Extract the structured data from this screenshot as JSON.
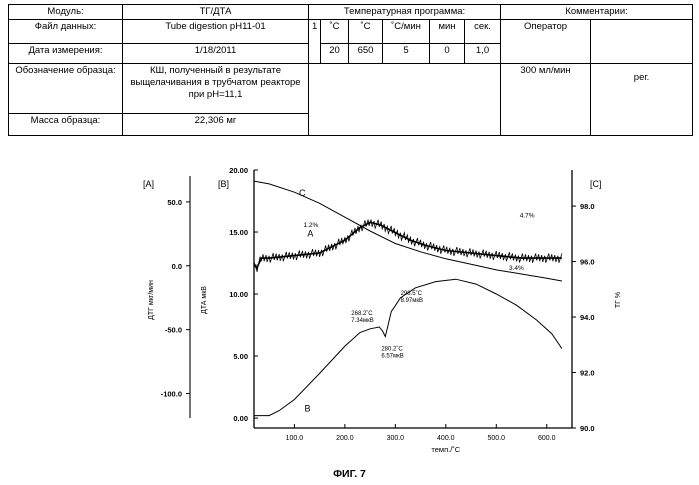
{
  "table": {
    "row1": {
      "module_label": "Модуль:",
      "module_value": "ТГ/ДТА",
      "program_label": "Температурная программа:",
      "comments_label": "Комментарии:"
    },
    "row2": {
      "datafile_label": "Файл данных:",
      "datafile_value": "Tube digestion pH11-01",
      "step_no": "1",
      "h_c1": "˚C",
      "h_c2": "˚C",
      "h_rate": "˚С/мин",
      "h_min": "мин",
      "h_sec": "сек.",
      "operator_label": "Оператор"
    },
    "row3": {
      "date_label": "Дата измерения:",
      "date_value": "1/18/2011",
      "v_start": "20",
      "v_end": "650",
      "v_rate": "5",
      "v_min": "0",
      "v_sec": "1,0"
    },
    "row4": {
      "sample_label": "Обозначение образца:",
      "sample_value": "КШ, полученный в результате выщелачивания в трубчатом реакторе при pH=11,1",
      "flow_value": "300 мл/мин",
      "flow_unit": "рег."
    },
    "row5": {
      "mass_label": "Масса образца:",
      "mass_value": "22,306 мг"
    }
  },
  "figure_caption": "ФИГ. 7",
  "chart_data": {
    "type": "line",
    "xlabel": "темп./˚C",
    "x_ticks": [
      "100.0",
      "200.0",
      "300.0",
      "400.0",
      "500.0",
      "600.0"
    ],
    "xlim": [
      20,
      650
    ],
    "axes": {
      "A": {
        "tag": "[A]",
        "label": "ДТГ мкг/мин",
        "ticks": [
          "50.0",
          "0.0",
          "-50.0",
          "-100.0"
        ],
        "ylim": [
          -127,
          75
        ]
      },
      "B": {
        "tag": "[B]",
        "label": "ДТА мкВ",
        "ticks": [
          "20.00",
          "15.00",
          "10.00",
          "5.00",
          "0.00"
        ],
        "ylim": [
          -0.8,
          20
        ]
      },
      "C": {
        "tag": "[C]",
        "label": "ТГ %",
        "ticks": [
          "98.0",
          "96.0",
          "94.0",
          "92.0",
          "90.0"
        ],
        "ylim": [
          90,
          99.3
        ]
      }
    },
    "series": [
      {
        "name": "A",
        "axis": "A",
        "x": [
          20,
          25,
          35,
          50,
          100,
          150,
          200,
          230,
          250,
          270,
          300,
          330,
          360,
          400,
          450,
          500,
          550,
          600,
          630
        ],
        "y": [
          2,
          -2,
          6,
          6,
          8,
          10,
          20,
          30,
          34,
          32,
          26,
          20,
          16,
          12,
          10,
          8,
          6,
          6,
          6
        ]
      },
      {
        "name": "B",
        "axis": "B",
        "x": [
          20,
          50,
          70,
          100,
          150,
          200,
          230,
          250,
          268.2,
          275,
          280.2,
          285,
          292,
          298.5,
          310,
          340,
          380,
          420,
          460,
          500,
          540,
          580,
          610,
          630
        ],
        "y": [
          0.2,
          0.2,
          0.6,
          1.5,
          3.6,
          5.8,
          6.9,
          7.2,
          7.34,
          7.0,
          6.57,
          7.4,
          8.6,
          8.97,
          9.7,
          10.5,
          11.0,
          11.2,
          10.8,
          10.0,
          9.1,
          7.9,
          6.8,
          5.6
        ]
      },
      {
        "name": "C",
        "axis": "C",
        "x": [
          20,
          50,
          100,
          150,
          200,
          250,
          300,
          350,
          400,
          450,
          500,
          550,
          600,
          630
        ],
        "y": [
          98.9,
          98.8,
          98.5,
          98.1,
          97.6,
          97.1,
          96.65,
          96.35,
          96.1,
          95.9,
          95.7,
          95.55,
          95.4,
          95.3
        ]
      }
    ],
    "series_labels": [
      "A",
      "B",
      "C"
    ],
    "annotations": [
      {
        "text": "1.2%",
        "x": 130,
        "y": 97.6,
        "axis": "C"
      },
      {
        "text": "4.7%",
        "x": 590,
        "y": 97.3,
        "axis": "C"
      },
      {
        "text": "3.4%",
        "x": 545,
        "y": 95.4,
        "axis": "C"
      },
      {
        "lines": [
          "268.2˚C",
          "7.34мкВ"
        ],
        "x": 268.2,
        "y": 7.34,
        "axis": "B"
      },
      {
        "lines": [
          "298.5˚C",
          "8.97мкВ"
        ],
        "x": 298.5,
        "y": 8.97,
        "axis": "B"
      },
      {
        "lines": [
          "280.2˚C",
          "6.57мкВ"
        ],
        "x": 280.2,
        "y": 6.57,
        "axis": "B"
      }
    ]
  }
}
